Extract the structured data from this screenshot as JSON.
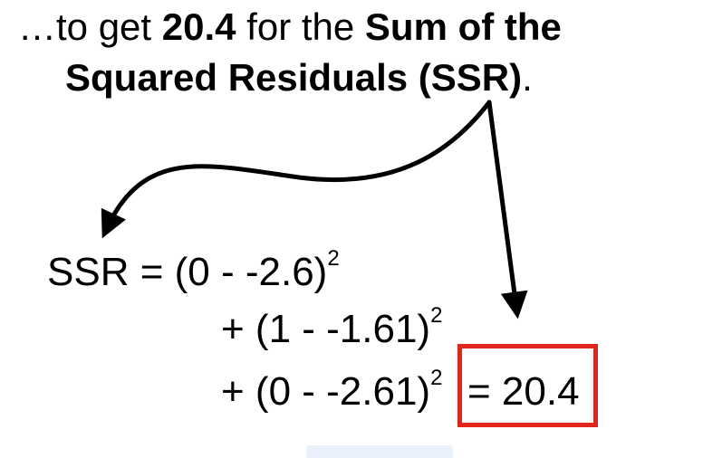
{
  "headline": {
    "part1": "…to get ",
    "value": "20.4",
    "part2": " for the ",
    "term_line1": "Sum of the",
    "term_line2": "Squared Residuals (SSR)",
    "end": "."
  },
  "equation": {
    "line1": {
      "prefix": "SSR = (0 - -2.6)",
      "exp": "2"
    },
    "line2": {
      "prefix": "+ (1 - -1.61)",
      "exp": "2"
    },
    "line3": {
      "prefix": "+ (0 - -2.61)",
      "exp": "2"
    },
    "result": "= 20.4"
  },
  "colors": {
    "highlight_box": "#e0251b",
    "text": "#000000",
    "arrow": "#000000"
  }
}
